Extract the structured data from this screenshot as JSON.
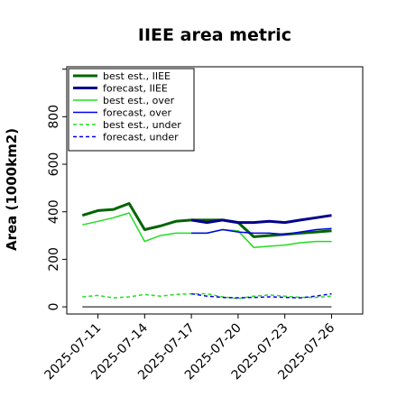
{
  "chart_data": {
    "type": "line",
    "title": "IIEE area metric",
    "xlabel": "",
    "ylabel": "Area (1000km2)",
    "ylim": [
      -30,
      1010
    ],
    "yticks": [
      0,
      200,
      400,
      600,
      800
    ],
    "xlim": [
      "2025-07-09",
      "2025-07-28"
    ],
    "xticks": [
      "2025-07-11",
      "2025-07-14",
      "2025-07-17",
      "2025-07-20",
      "2025-07-23",
      "2025-07-26"
    ],
    "highlight_tick": "2025-07-17",
    "highlight_color": "#228b22",
    "grid": false,
    "legend_position": "top-left",
    "baseline": 0,
    "series": [
      {
        "name": "best est., IIEE",
        "color": "#006400",
        "width": 3,
        "dash": "solid",
        "x": [
          "2025-07-10",
          "2025-07-11",
          "2025-07-12",
          "2025-07-13",
          "2025-07-14",
          "2025-07-15",
          "2025-07-16",
          "2025-07-17",
          "2025-07-18",
          "2025-07-19",
          "2025-07-20",
          "2025-07-21",
          "2025-07-22",
          "2025-07-23",
          "2025-07-24",
          "2025-07-25",
          "2025-07-26"
        ],
        "values": [
          385,
          405,
          410,
          435,
          325,
          340,
          360,
          365,
          365,
          365,
          355,
          295,
          300,
          305,
          310,
          315,
          320
        ]
      },
      {
        "name": "forecast, IIEE",
        "color": "#00008b",
        "width": 3,
        "dash": "solid",
        "x": [
          "2025-07-17",
          "2025-07-18",
          "2025-07-19",
          "2025-07-20",
          "2025-07-21",
          "2025-07-22",
          "2025-07-23",
          "2025-07-24",
          "2025-07-25",
          "2025-07-26"
        ],
        "values": [
          365,
          355,
          365,
          355,
          355,
          360,
          355,
          365,
          375,
          385
        ]
      },
      {
        "name": "best est., over",
        "color": "#22dd22",
        "width": 1.5,
        "dash": "solid",
        "x": [
          "2025-07-10",
          "2025-07-11",
          "2025-07-12",
          "2025-07-13",
          "2025-07-14",
          "2025-07-15",
          "2025-07-16",
          "2025-07-17",
          "2025-07-18",
          "2025-07-19",
          "2025-07-20",
          "2025-07-21",
          "2025-07-22",
          "2025-07-23",
          "2025-07-24",
          "2025-07-25",
          "2025-07-26"
        ],
        "values": [
          345,
          360,
          375,
          395,
          275,
          300,
          310,
          310,
          310,
          325,
          320,
          250,
          255,
          260,
          270,
          275,
          275
        ]
      },
      {
        "name": "forecast, over",
        "color": "#0000ee",
        "width": 1.5,
        "dash": "solid",
        "x": [
          "2025-07-17",
          "2025-07-18",
          "2025-07-19",
          "2025-07-20",
          "2025-07-21",
          "2025-07-22",
          "2025-07-23",
          "2025-07-24",
          "2025-07-25",
          "2025-07-26"
        ],
        "values": [
          310,
          310,
          325,
          315,
          310,
          310,
          305,
          315,
          325,
          330
        ]
      },
      {
        "name": "best est., under",
        "color": "#22dd22",
        "width": 1.5,
        "dash": "4,3",
        "x": [
          "2025-07-10",
          "2025-07-11",
          "2025-07-12",
          "2025-07-13",
          "2025-07-14",
          "2025-07-15",
          "2025-07-16",
          "2025-07-17",
          "2025-07-18",
          "2025-07-19",
          "2025-07-20",
          "2025-07-21",
          "2025-07-22",
          "2025-07-23",
          "2025-07-24",
          "2025-07-25",
          "2025-07-26"
        ],
        "values": [
          42,
          48,
          38,
          42,
          52,
          45,
          52,
          55,
          55,
          42,
          35,
          45,
          50,
          45,
          40,
          40,
          45
        ]
      },
      {
        "name": "forecast, under",
        "color": "#0000ee",
        "width": 1.5,
        "dash": "4,3",
        "x": [
          "2025-07-17",
          "2025-07-18",
          "2025-07-19",
          "2025-07-20",
          "2025-07-21",
          "2025-07-22",
          "2025-07-23",
          "2025-07-24",
          "2025-07-25",
          "2025-07-26"
        ],
        "values": [
          55,
          45,
          40,
          38,
          40,
          42,
          40,
          38,
          45,
          55
        ]
      }
    ]
  }
}
